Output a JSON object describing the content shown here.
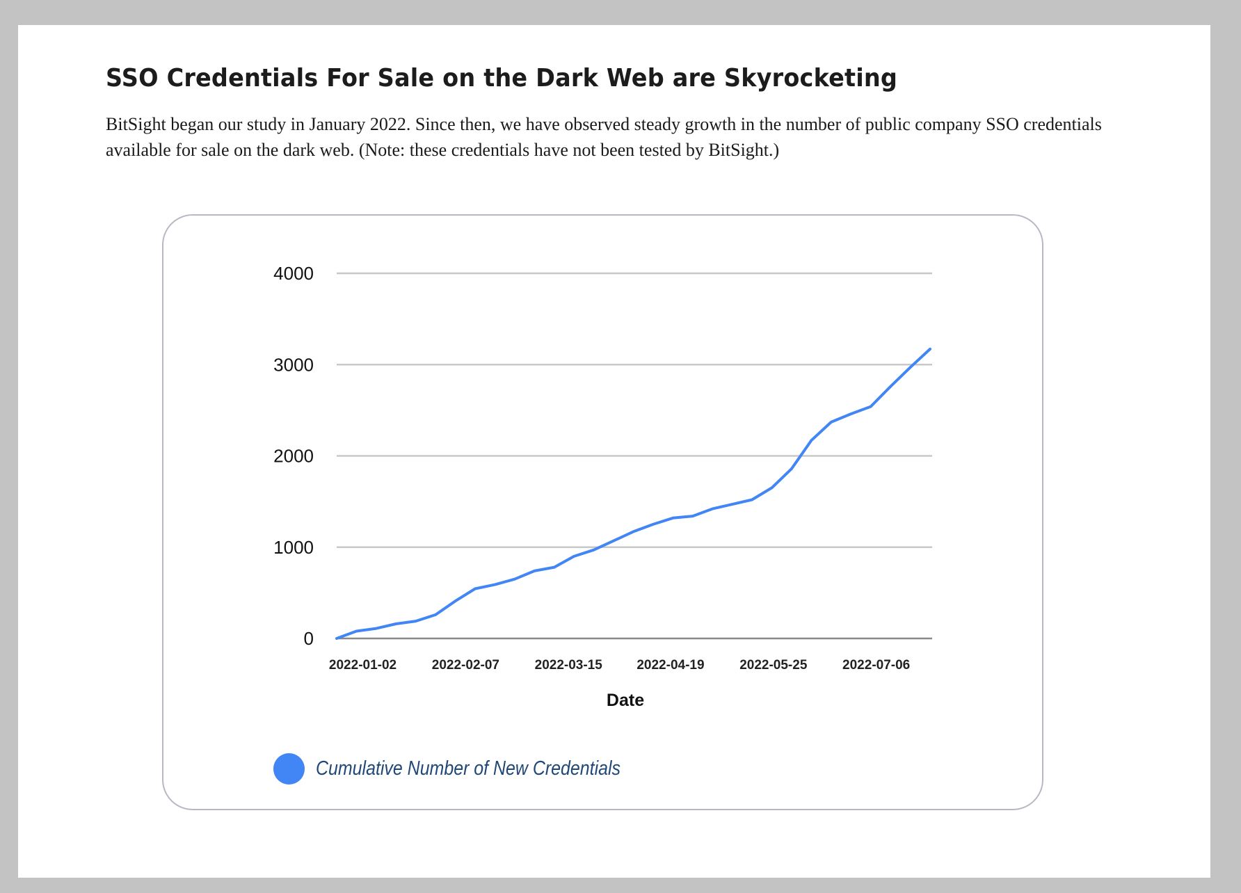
{
  "title": "SSO Credentials For Sale on the Dark Web are Skyrocketing",
  "description": "BitSight began our study in January 2022. Since then, we have observed steady growth in the number of public company SSO credentials available for sale on the dark web. (Note: these credentials have not been tested by BitSight.)",
  "colors": {
    "series": "#4285f4",
    "legend_text": "#1f4878",
    "grid": "#c8c8c8"
  },
  "chart_data": {
    "type": "line",
    "title": "",
    "xlabel": "Date",
    "ylabel": "",
    "ylim": [
      0,
      4000
    ],
    "yticks": [
      0,
      1000,
      2000,
      3000,
      4000
    ],
    "xlim_index": [
      0,
      30
    ],
    "xticks": [
      {
        "index": 1.32,
        "label": "2022-01-02"
      },
      {
        "index": 6.52,
        "label": "2022-02-07"
      },
      {
        "index": 11.72,
        "label": "2022-03-15"
      },
      {
        "index": 16.88,
        "label": "2022-04-19"
      },
      {
        "index": 22.08,
        "label": "2022-05-25"
      },
      {
        "index": 27.28,
        "label": "2022-07-06"
      }
    ],
    "grid": true,
    "legend_position": "bottom-left",
    "series": [
      {
        "name": "Cumulative Number of New Credentials",
        "values": [
          0,
          80,
          110,
          160,
          190,
          260,
          410,
          545,
          590,
          650,
          740,
          780,
          900,
          970,
          1070,
          1170,
          1250,
          1320,
          1340,
          1420,
          1470,
          1520,
          1650,
          1860,
          2170,
          2370,
          2460,
          2540,
          2760,
          2970,
          3170
        ]
      }
    ]
  }
}
